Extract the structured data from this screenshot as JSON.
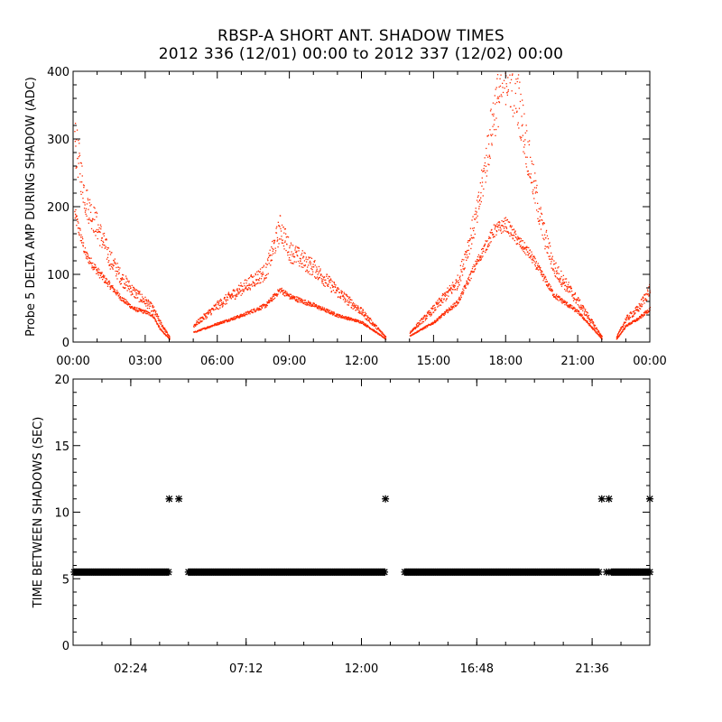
{
  "title_line1": "RBSP-A SHORT ANT. SHADOW TIMES",
  "title_line2": "2012 336 (12/01) 00:00 to 2012 337 (12/02) 00:00",
  "colors": {
    "top_series": "#ff2a00",
    "bottom_series": "#000000",
    "axes": "#000000"
  },
  "chart_data": [
    {
      "type": "scatter",
      "ylabel": "Probe 5 DELTA AMP DURING SHADOW (ADC)",
      "xlabel": "",
      "xlim_hours": [
        0,
        24
      ],
      "ylim": [
        0,
        400
      ],
      "x_tick_labels": [
        "00:00",
        "03:00",
        "06:00",
        "09:00",
        "12:00",
        "15:00",
        "18:00",
        "21:00",
        "00:00"
      ],
      "y_tick_labels": [
        "0",
        "100",
        "200",
        "300",
        "400"
      ],
      "grid": false,
      "series": [
        {
          "color": "#ff2a00",
          "description_points": [
            {
              "segment": 1,
              "lower": [
                [
                  0.05,
                  190
                ],
                [
                  0.5,
                  130
                ],
                [
                  1.0,
                  105
                ],
                [
                  1.5,
                  85
                ],
                [
                  2.0,
                  65
                ],
                [
                  2.5,
                  50
                ],
                [
                  3.0,
                  45
                ],
                [
                  3.3,
                  40
                ],
                [
                  3.6,
                  20
                ],
                [
                  4.0,
                  5
                ]
              ],
              "upper": [
                [
                  0.05,
                  300
                ],
                [
                  0.5,
                  210
                ],
                [
                  1.0,
                  170
                ],
                [
                  1.5,
                  125
                ],
                [
                  2.0,
                  95
                ],
                [
                  2.5,
                  75
                ],
                [
                  3.0,
                  60
                ],
                [
                  3.3,
                  50
                ],
                [
                  3.6,
                  30
                ],
                [
                  4.0,
                  8
                ]
              ]
            },
            {
              "segment": 2,
              "lower": [
                [
                  5.0,
                  15
                ],
                [
                  6.0,
                  28
                ],
                [
                  7.0,
                  40
                ],
                [
                  8.0,
                  55
                ],
                [
                  8.6,
                  78
                ],
                [
                  9.0,
                  68
                ],
                [
                  10.0,
                  55
                ],
                [
                  11.0,
                  40
                ],
                [
                  12.0,
                  30
                ],
                [
                  13.0,
                  5
                ]
              ],
              "upper": [
                [
                  5.0,
                  25
                ],
                [
                  6.0,
                  55
                ],
                [
                  7.0,
                  80
                ],
                [
                  8.0,
                  105
                ],
                [
                  8.6,
                  170
                ],
                [
                  9.0,
                  135
                ],
                [
                  10.0,
                  110
                ],
                [
                  11.0,
                  75
                ],
                [
                  12.0,
                  45
                ],
                [
                  13.0,
                  8
                ]
              ]
            },
            {
              "segment": 3,
              "lower": [
                [
                  14.0,
                  10
                ],
                [
                  15.0,
                  30
                ],
                [
                  16.0,
                  60
                ],
                [
                  16.8,
                  120
                ],
                [
                  17.5,
                  165
                ],
                [
                  18.0,
                  175
                ],
                [
                  18.5,
                  150
                ],
                [
                  19.0,
                  130
                ],
                [
                  19.5,
                  100
                ],
                [
                  20.0,
                  70
                ],
                [
                  21.0,
                  45
                ],
                [
                  22.0,
                  5
                ]
              ],
              "upper": [
                [
                  14.0,
                  15
                ],
                [
                  15.0,
                  50
                ],
                [
                  16.0,
                  90
                ],
                [
                  16.8,
                  190
                ],
                [
                  17.5,
                  340
                ],
                [
                  18.0,
                  400
                ],
                [
                  18.5,
                  360
                ],
                [
                  19.0,
                  260
                ],
                [
                  19.5,
                  170
                ],
                [
                  20.0,
                  110
                ],
                [
                  21.0,
                  60
                ],
                [
                  22.0,
                  8
                ]
              ]
            },
            {
              "segment": 4,
              "lower": [
                [
                  22.6,
                  5
                ],
                [
                  23.0,
                  25
                ],
                [
                  23.5,
                  35
                ],
                [
                  24.0,
                  50
                ]
              ],
              "upper": [
                [
                  22.6,
                  8
                ],
                [
                  23.0,
                  35
                ],
                [
                  23.5,
                  50
                ],
                [
                  24.0,
                  80
                ]
              ]
            }
          ]
        }
      ]
    },
    {
      "type": "scatter",
      "ylabel": "TIME BETWEEN SHADOWS (SEC)",
      "xlabel": "",
      "xlim_hours": [
        0,
        24
      ],
      "ylim": [
        0,
        20
      ],
      "x_tick_labels": [
        "02:24",
        "07:12",
        "12:00",
        "16:48",
        "21:36"
      ],
      "y_tick_labels": [
        "0",
        "5",
        "10",
        "15",
        "20"
      ],
      "grid": false,
      "series": [
        {
          "color": "#000000",
          "marker": "asterisk",
          "baseline_value": 5.5,
          "baseline_ranges_hours": [
            [
              0.05,
              4.0
            ],
            [
              4.8,
              13.0
            ],
            [
              13.8,
              21.9
            ],
            [
              22.4,
              24.0
            ]
          ],
          "outliers": [
            [
              4.0,
              11
            ],
            [
              4.4,
              11
            ],
            [
              13.0,
              11
            ],
            [
              22.0,
              11
            ],
            [
              22.3,
              11
            ],
            [
              24.0,
              11
            ],
            [
              22.2,
              5.5
            ],
            [
              22.3,
              5.5
            ]
          ]
        }
      ]
    }
  ]
}
